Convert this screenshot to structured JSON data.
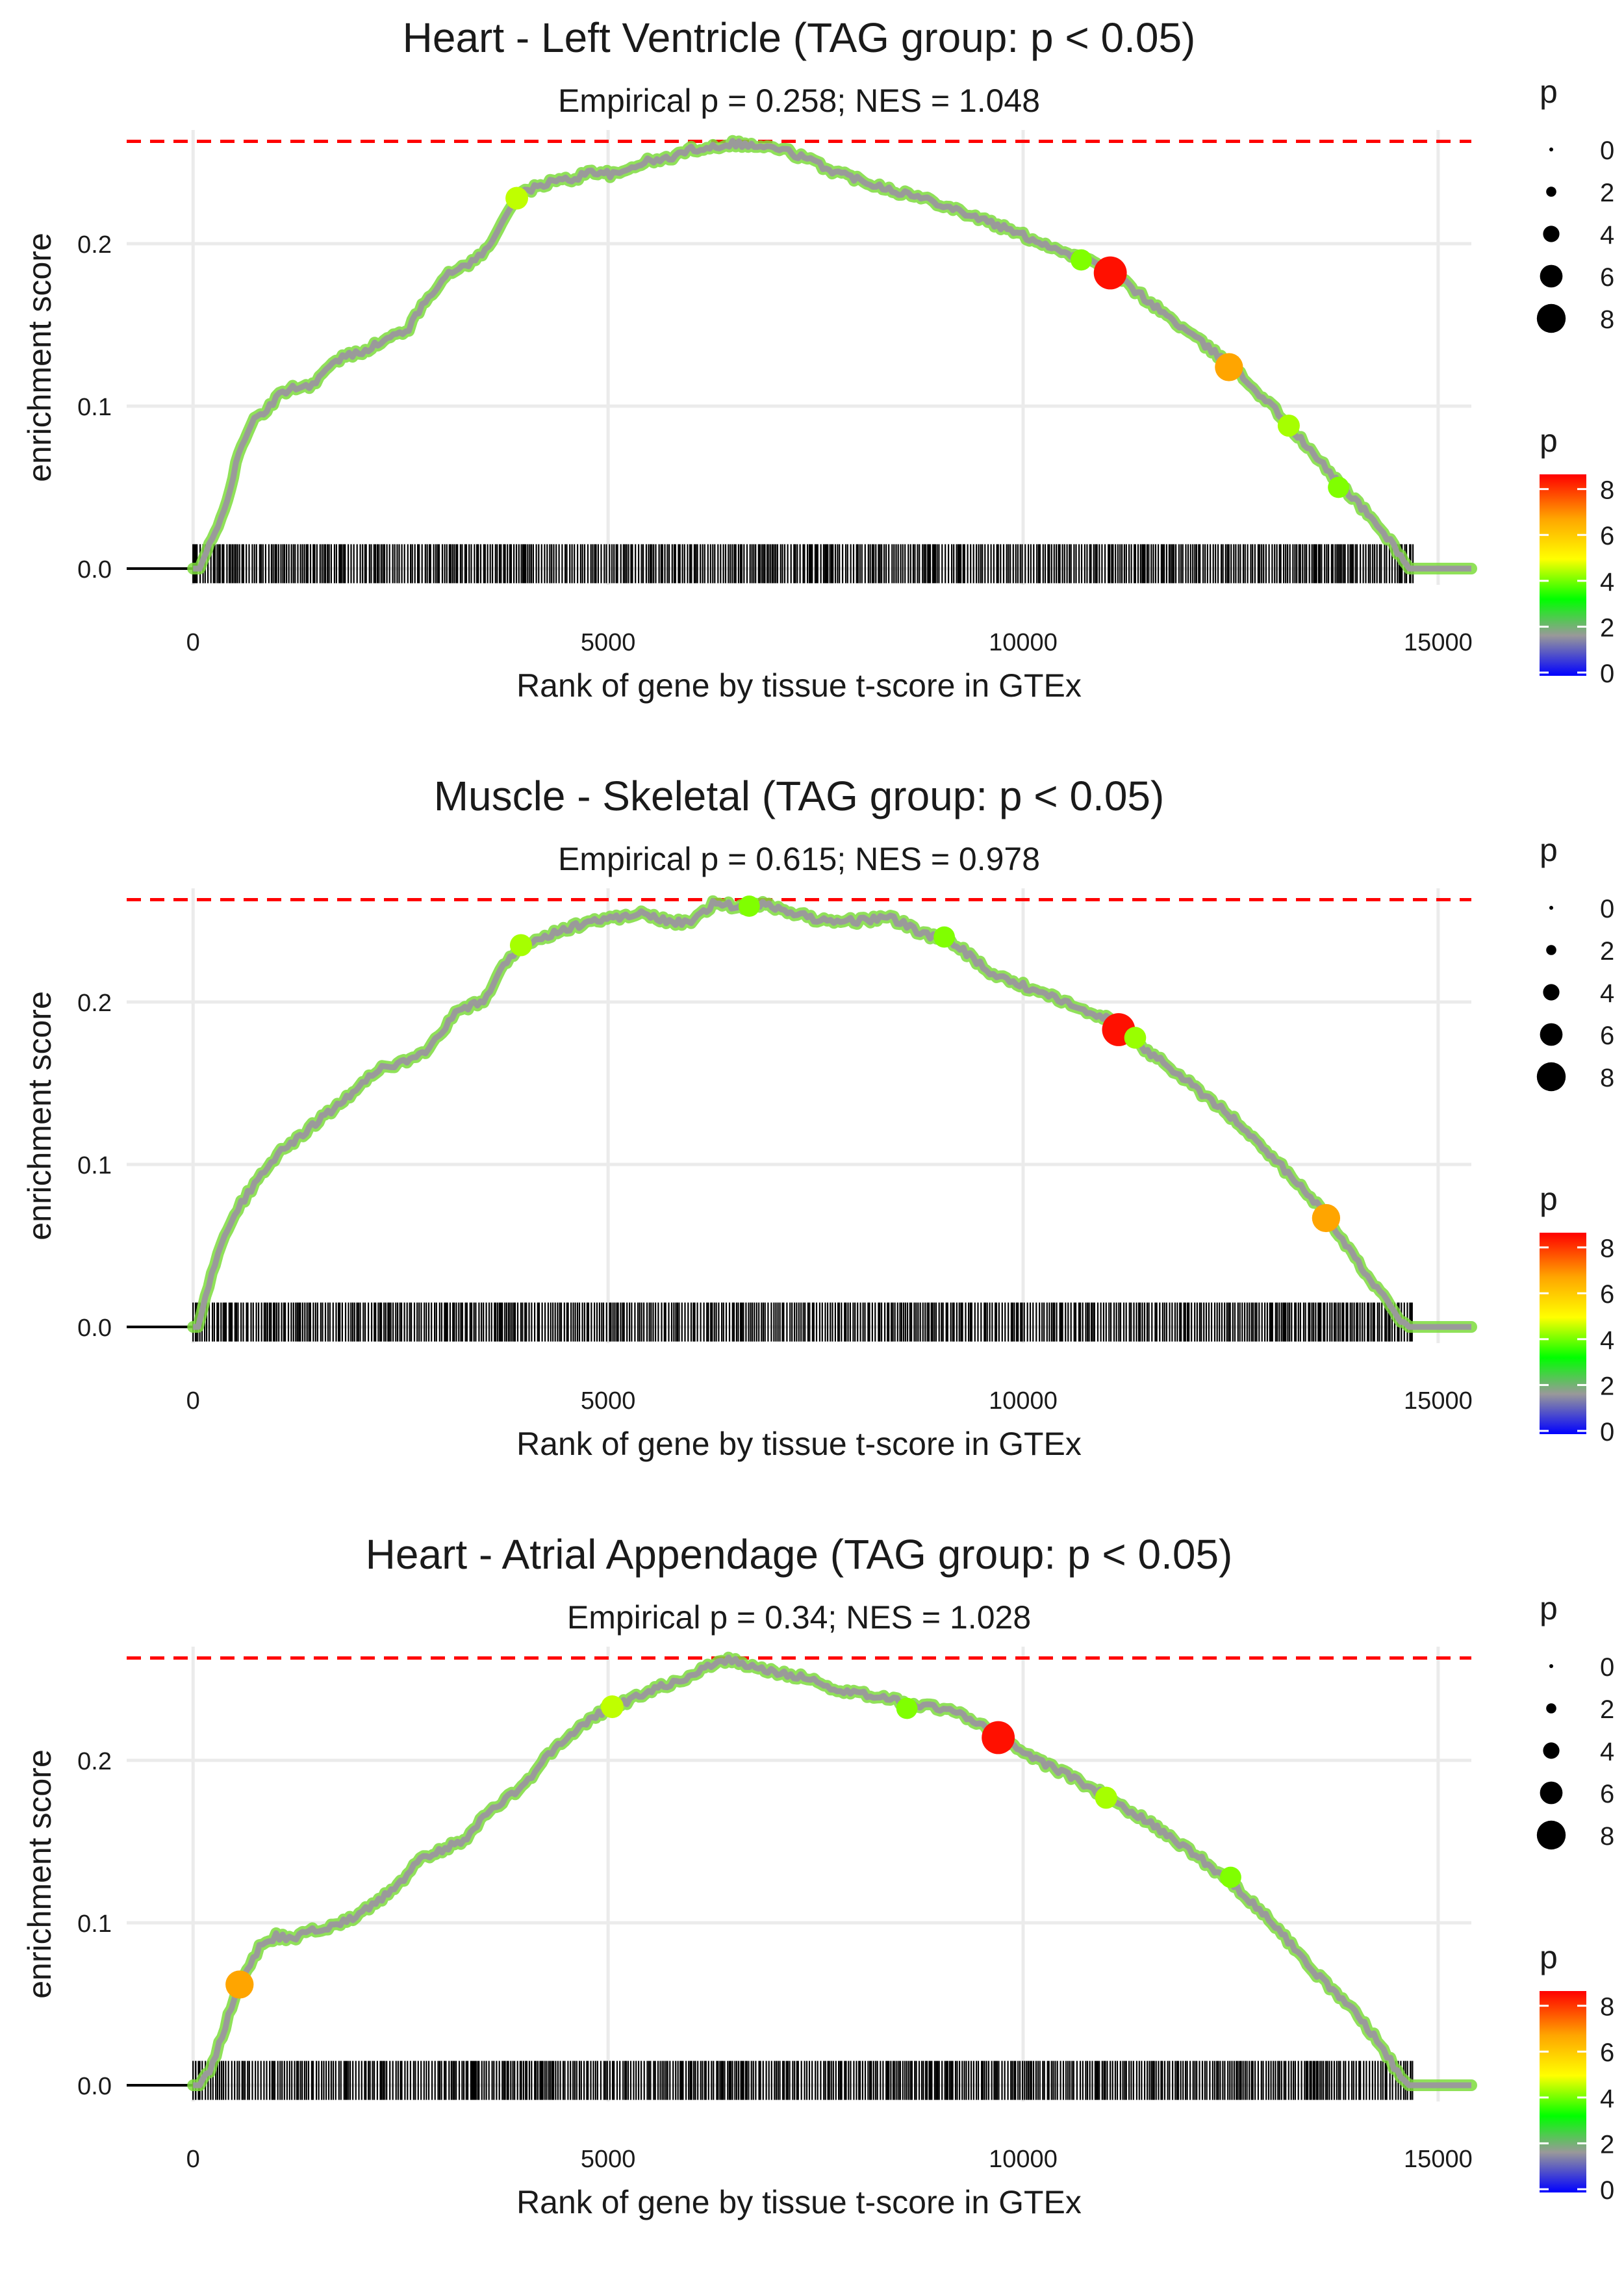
{
  "chart_data": [
    {
      "type": "line",
      "title": "Heart - Left Ventricle (TAG group: p < 0.05)",
      "subtitle": "Empirical p = 0.258; NES = 1.048",
      "xlabel": "Rank of gene by tissue t-score in GTEx",
      "ylabel": "enrichment score",
      "xlim": [
        -800,
        15400
      ],
      "ylim": [
        -0.01,
        0.27
      ],
      "xticks": [
        0,
        5000,
        10000,
        15000
      ],
      "xtick_labels": [
        "0",
        "5000",
        "10000",
        "15000"
      ],
      "yticks": [
        0.0,
        0.1,
        0.2
      ],
      "ytick_labels": [
        "0.0",
        "0.1",
        "0.2"
      ],
      "max_es": 0.263,
      "n_genes": 14700,
      "curve": [
        [
          0,
          0
        ],
        [
          80,
          0
        ],
        [
          160,
          0.01
        ],
        [
          300,
          0.025
        ],
        [
          450,
          0.05
        ],
        [
          550,
          0.07
        ],
        [
          700,
          0.09
        ],
        [
          850,
          0.095
        ],
        [
          1000,
          0.105
        ],
        [
          1200,
          0.112
        ],
        [
          1400,
          0.112
        ],
        [
          1600,
          0.122
        ],
        [
          1800,
          0.13
        ],
        [
          2000,
          0.133
        ],
        [
          2300,
          0.14
        ],
        [
          2600,
          0.148
        ],
        [
          2800,
          0.165
        ],
        [
          3000,
          0.178
        ],
        [
          3200,
          0.185
        ],
        [
          3400,
          0.19
        ],
        [
          3600,
          0.2
        ],
        [
          3800,
          0.222
        ],
        [
          4000,
          0.232
        ],
        [
          4300,
          0.238
        ],
        [
          4600,
          0.24
        ],
        [
          4800,
          0.245
        ],
        [
          5100,
          0.242
        ],
        [
          5400,
          0.25
        ],
        [
          5700,
          0.252
        ],
        [
          6000,
          0.258
        ],
        [
          6300,
          0.26
        ],
        [
          6500,
          0.262
        ],
        [
          6800,
          0.26
        ],
        [
          7100,
          0.258
        ],
        [
          7400,
          0.252
        ],
        [
          7700,
          0.245
        ],
        [
          8000,
          0.24
        ],
        [
          8500,
          0.232
        ],
        [
          9000,
          0.225
        ],
        [
          9500,
          0.215
        ],
        [
          10000,
          0.205
        ],
        [
          10500,
          0.195
        ],
        [
          11000,
          0.185
        ],
        [
          11500,
          0.165
        ],
        [
          12000,
          0.145
        ],
        [
          12500,
          0.125
        ],
        [
          13000,
          0.1
        ],
        [
          13500,
          0.07
        ],
        [
          14000,
          0.042
        ],
        [
          14300,
          0.025
        ],
        [
          14550,
          0.008
        ],
        [
          14650,
          0
        ],
        [
          15400,
          0
        ]
      ],
      "points": [
        {
          "x": 11050,
          "y": 0.182,
          "p": 8.3
        },
        {
          "x": 12480,
          "y": 0.124,
          "p": 6.5
        },
        {
          "x": 3900,
          "y": 0.228,
          "p": 4.5
        },
        {
          "x": 13200,
          "y": 0.088,
          "p": 4.3
        },
        {
          "x": 10700,
          "y": 0.19,
          "p": 4.0
        },
        {
          "x": 13800,
          "y": 0.05,
          "p": 4.0
        }
      ],
      "legend_size": {
        "title": "p",
        "labels": [
          "0",
          "2",
          "4",
          "6",
          "8"
        ]
      },
      "legend_color": {
        "title": "p",
        "labels": [
          "8",
          "6",
          "4",
          "2",
          "0"
        ],
        "colors": [
          "#ff0000",
          "#ffa500",
          "#ffff00",
          "#00ff00",
          "#999999",
          "#0000ff"
        ]
      }
    },
    {
      "type": "line",
      "title": "Muscle - Skeletal (TAG group: p < 0.05)",
      "subtitle": "Empirical p = 0.615; NES = 0.978",
      "xlabel": "Rank of gene by tissue t-score in GTEx",
      "ylabel": "enrichment score",
      "xlim": [
        -800,
        15400
      ],
      "ylim": [
        -0.01,
        0.27
      ],
      "xticks": [
        0,
        5000,
        10000,
        15000
      ],
      "xtick_labels": [
        "0",
        "5000",
        "10000",
        "15000"
      ],
      "yticks": [
        0.0,
        0.1,
        0.2
      ],
      "ytick_labels": [
        "0.0",
        "0.1",
        "0.2"
      ],
      "max_es": 0.263,
      "n_genes": 14700,
      "curve": [
        [
          0,
          0
        ],
        [
          60,
          0
        ],
        [
          150,
          0.02
        ],
        [
          300,
          0.045
        ],
        [
          500,
          0.07
        ],
        [
          700,
          0.085
        ],
        [
          900,
          0.1
        ],
        [
          1100,
          0.11
        ],
        [
          1400,
          0.122
        ],
        [
          1700,
          0.135
        ],
        [
          2000,
          0.148
        ],
        [
          2200,
          0.158
        ],
        [
          2500,
          0.162
        ],
        [
          2800,
          0.168
        ],
        [
          3000,
          0.182
        ],
        [
          3200,
          0.195
        ],
        [
          3500,
          0.2
        ],
        [
          3700,
          0.22
        ],
        [
          3900,
          0.232
        ],
        [
          4200,
          0.24
        ],
        [
          4500,
          0.245
        ],
        [
          4800,
          0.25
        ],
        [
          5100,
          0.252
        ],
        [
          5400,
          0.255
        ],
        [
          5700,
          0.25
        ],
        [
          6000,
          0.248
        ],
        [
          6300,
          0.262
        ],
        [
          6600,
          0.258
        ],
        [
          6900,
          0.26
        ],
        [
          7200,
          0.255
        ],
        [
          7600,
          0.25
        ],
        [
          8000,
          0.25
        ],
        [
          8400,
          0.252
        ],
        [
          8800,
          0.242
        ],
        [
          9200,
          0.235
        ],
        [
          9600,
          0.218
        ],
        [
          10000,
          0.21
        ],
        [
          10500,
          0.2
        ],
        [
          11000,
          0.19
        ],
        [
          11500,
          0.17
        ],
        [
          12000,
          0.15
        ],
        [
          12500,
          0.13
        ],
        [
          13000,
          0.105
        ],
        [
          13500,
          0.078
        ],
        [
          14000,
          0.042
        ],
        [
          14300,
          0.022
        ],
        [
          14550,
          0.005
        ],
        [
          14650,
          0
        ],
        [
          15400,
          0
        ]
      ],
      "points": [
        {
          "x": 11150,
          "y": 0.183,
          "p": 8.3
        },
        {
          "x": 13650,
          "y": 0.067,
          "p": 6.5
        },
        {
          "x": 3950,
          "y": 0.235,
          "p": 4.3
        },
        {
          "x": 11350,
          "y": 0.178,
          "p": 4.2
        },
        {
          "x": 9050,
          "y": 0.24,
          "p": 4.0
        },
        {
          "x": 6700,
          "y": 0.259,
          "p": 4.0
        }
      ],
      "legend_size": {
        "title": "p",
        "labels": [
          "0",
          "2",
          "4",
          "6",
          "8"
        ]
      },
      "legend_color": {
        "title": "p",
        "labels": [
          "8",
          "6",
          "4",
          "2",
          "0"
        ],
        "colors": [
          "#ff0000",
          "#ffa500",
          "#ffff00",
          "#00ff00",
          "#999999",
          "#0000ff"
        ]
      }
    },
    {
      "type": "line",
      "title": "Heart - Atrial Appendage (TAG group: p < 0.05)",
      "subtitle": "Empirical p = 0.34; NES = 1.028",
      "xlabel": "Rank of gene by tissue t-score in GTEx",
      "ylabel": "enrichment score",
      "xlim": [
        -800,
        15400
      ],
      "ylim": [
        -0.01,
        0.27
      ],
      "xticks": [
        0,
        5000,
        10000,
        15000
      ],
      "xtick_labels": [
        "0",
        "5000",
        "10000",
        "15000"
      ],
      "yticks": [
        0.0,
        0.1,
        0.2
      ],
      "ytick_labels": [
        "0.0",
        "0.1",
        "0.2"
      ],
      "max_es": 0.263,
      "n_genes": 14700,
      "curve": [
        [
          0,
          0
        ],
        [
          80,
          0
        ],
        [
          200,
          0.008
        ],
        [
          350,
          0.03
        ],
        [
          500,
          0.055
        ],
        [
          650,
          0.07
        ],
        [
          800,
          0.085
        ],
        [
          1000,
          0.092
        ],
        [
          1200,
          0.09
        ],
        [
          1400,
          0.095
        ],
        [
          1700,
          0.098
        ],
        [
          2000,
          0.105
        ],
        [
          2200,
          0.112
        ],
        [
          2500,
          0.125
        ],
        [
          2700,
          0.138
        ],
        [
          3000,
          0.145
        ],
        [
          3300,
          0.152
        ],
        [
          3500,
          0.165
        ],
        [
          3800,
          0.178
        ],
        [
          4000,
          0.185
        ],
        [
          4200,
          0.198
        ],
        [
          4400,
          0.21
        ],
        [
          4700,
          0.222
        ],
        [
          5000,
          0.232
        ],
        [
          5300,
          0.238
        ],
        [
          5600,
          0.245
        ],
        [
          5900,
          0.25
        ],
        [
          6200,
          0.258
        ],
        [
          6450,
          0.262
        ],
        [
          6700,
          0.258
        ],
        [
          7000,
          0.255
        ],
        [
          7400,
          0.25
        ],
        [
          7800,
          0.242
        ],
        [
          8200,
          0.24
        ],
        [
          8600,
          0.235
        ],
        [
          9000,
          0.232
        ],
        [
          9400,
          0.225
        ],
        [
          9700,
          0.215
        ],
        [
          10000,
          0.205
        ],
        [
          10500,
          0.192
        ],
        [
          11000,
          0.178
        ],
        [
          11500,
          0.162
        ],
        [
          12000,
          0.145
        ],
        [
          12500,
          0.125
        ],
        [
          13000,
          0.1
        ],
        [
          13500,
          0.07
        ],
        [
          14000,
          0.045
        ],
        [
          14300,
          0.025
        ],
        [
          14550,
          0.005
        ],
        [
          14650,
          0
        ],
        [
          15400,
          0
        ]
      ],
      "points": [
        {
          "x": 9700,
          "y": 0.214,
          "p": 8.3
        },
        {
          "x": 560,
          "y": 0.062,
          "p": 6.5
        },
        {
          "x": 5050,
          "y": 0.233,
          "p": 4.5
        },
        {
          "x": 11000,
          "y": 0.177,
          "p": 4.3
        },
        {
          "x": 8600,
          "y": 0.232,
          "p": 4.0
        },
        {
          "x": 12500,
          "y": 0.128,
          "p": 4.0
        }
      ],
      "legend_size": {
        "title": "p",
        "labels": [
          "0",
          "2",
          "4",
          "6",
          "8"
        ]
      },
      "legend_color": {
        "title": "p",
        "labels": [
          "8",
          "6",
          "4",
          "2",
          "0"
        ],
        "colors": [
          "#ff0000",
          "#ffa500",
          "#ffff00",
          "#00ff00",
          "#999999",
          "#0000ff"
        ]
      }
    }
  ]
}
